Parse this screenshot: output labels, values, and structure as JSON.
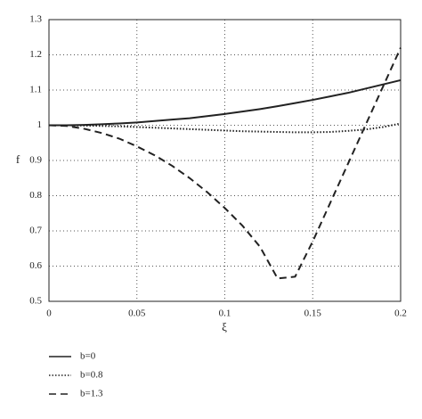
{
  "chart_data": {
    "type": "line",
    "x_label": "ξ",
    "y_label": "f",
    "x": [
      0,
      0.01,
      0.02,
      0.03,
      0.04,
      0.05,
      0.06,
      0.07,
      0.08,
      0.09,
      0.1,
      0.11,
      0.12,
      0.13,
      0.14,
      0.15,
      0.16,
      0.17,
      0.18,
      0.19,
      0.2
    ],
    "series": [
      {
        "name": "b=0",
        "color": "#222222",
        "dash": "solid",
        "values": [
          1,
          1,
          1.001,
          1.003,
          1.005,
          1.008,
          1.012,
          1.016,
          1.02,
          1.026,
          1.032,
          1.039,
          1.046,
          1.054,
          1.063,
          1.072,
          1.082,
          1.092,
          1.104,
          1.116,
          1.128
        ]
      },
      {
        "name": "b=0.8",
        "color": "#222222",
        "dash": "dotted",
        "values": [
          1,
          1,
          0.999,
          0.998,
          0.997,
          0.995,
          0.993,
          0.991,
          0.989,
          0.987,
          0.985,
          0.983,
          0.982,
          0.981,
          0.98,
          0.98,
          0.981,
          0.984,
          0.988,
          0.995,
          1.005
        ]
      },
      {
        "name": "b=1.3",
        "color": "#222222",
        "dash": "dashed",
        "values": [
          1,
          0.998,
          0.99,
          0.978,
          0.962,
          0.94,
          0.915,
          0.885,
          0.85,
          0.81,
          0.765,
          0.715,
          0.655,
          0.565,
          0.57,
          0.67,
          0.78,
          0.89,
          1.0,
          1.11,
          1.22
        ]
      }
    ],
    "xlim": [
      0,
      0.2
    ],
    "xticks": [
      0,
      0.05,
      0.1,
      0.15,
      0.2
    ],
    "ylim": [
      0.5,
      1.3
    ],
    "yticks": [
      0.5,
      0.6,
      0.7,
      0.8,
      0.9,
      1,
      1.1,
      1.2,
      1.3
    ],
    "grid": true
  }
}
